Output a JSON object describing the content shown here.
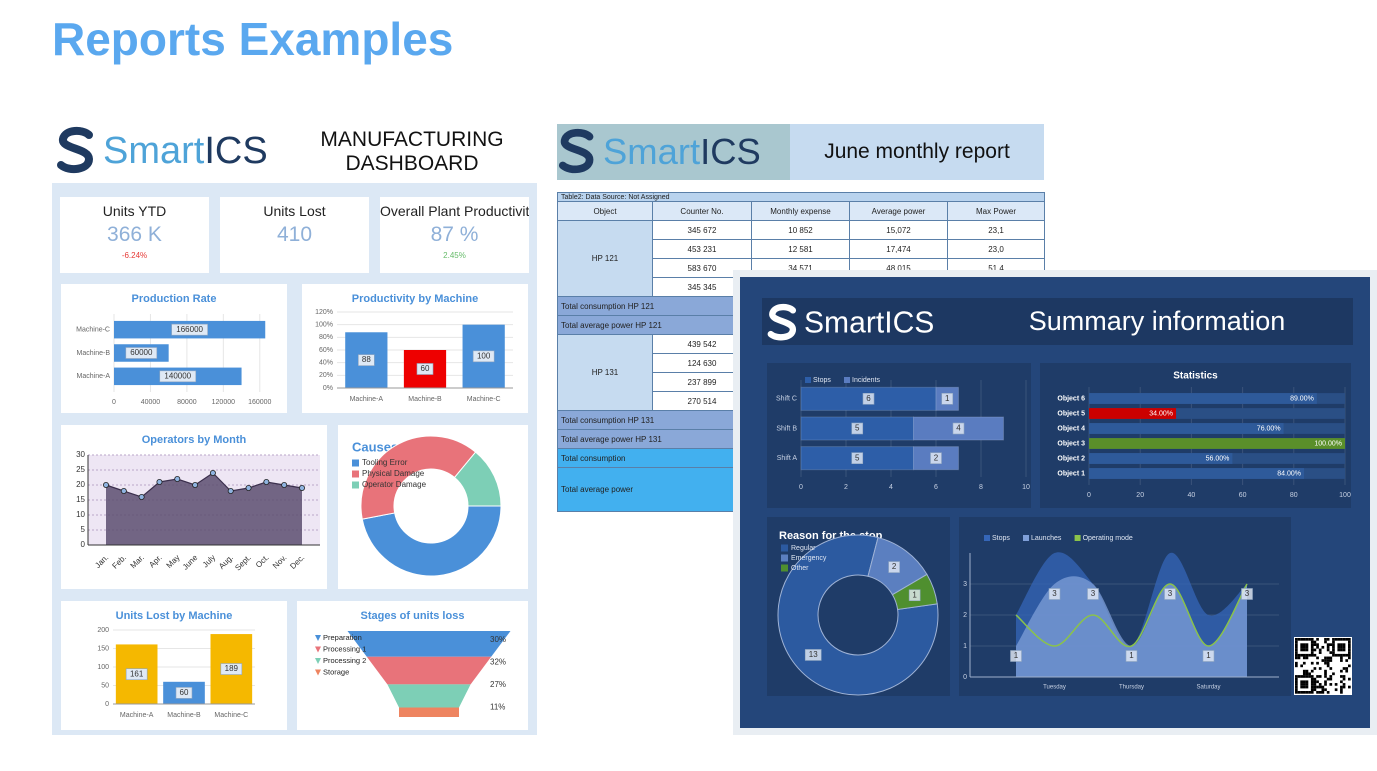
{
  "title": "Reports Examples",
  "dashboard": {
    "logo": {
      "left": "Smart",
      "right": "ICS"
    },
    "heading": [
      "MANUFACTURING",
      "DASHBOARD"
    ],
    "kpis": [
      {
        "label": "Units YTD",
        "value": "366 K",
        "delta": "-6.24%",
        "delta_color": "#e53935"
      },
      {
        "label": "Units Lost",
        "value": "410"
      },
      {
        "label": "Overall Plant Productivity",
        "value": "87 %",
        "delta": "2.45%",
        "delta_color": "#66bb6a"
      }
    ]
  },
  "report": {
    "logo": {
      "left": "Smart",
      "right": "ICS"
    },
    "heading": "June monthly report",
    "table": {
      "caption": "Table2: Data Source: Not Assigned",
      "columns": [
        "Object",
        "Counter No.",
        "Monthly expense",
        "Average power",
        "Max Power"
      ],
      "body": [
        {
          "object": "HP 121",
          "rows": [
            [
              "345 672",
              "10 852",
              "15,072",
              "23,1"
            ],
            [
              "453 231",
              "12 581",
              "17,474",
              "23,0"
            ],
            [
              "583 670",
              "34 571",
              "48,015",
              "51,4"
            ],
            [
              "345 345"
            ]
          ]
        },
        {
          "total": "Total consumption HP 121"
        },
        {
          "total": "Total average power HP 121"
        },
        {
          "object": "HP 131",
          "rows": [
            [
              "439 542"
            ],
            [
              "124 630"
            ],
            [
              "237 899"
            ],
            [
              "270 514"
            ]
          ]
        },
        {
          "total": "Total consumption HP 131"
        },
        {
          "total": "Total average power HP 131"
        },
        {
          "total": "Total consumption",
          "style": "grand"
        },
        {
          "total": "Total average power",
          "style": "grand"
        }
      ]
    }
  },
  "summary": {
    "logo": {
      "left": "Smart",
      "right": "ICS"
    },
    "heading": "Summary information"
  },
  "chart_data": [
    {
      "type": "bar",
      "orientation": "horizontal",
      "title": "Production Rate",
      "categories": [
        "Machine-C",
        "Machine-B",
        "Machine-A"
      ],
      "values": [
        166000,
        60000,
        140000
      ],
      "color": "#4a90d9",
      "xlim": [
        0,
        180000
      ],
      "xticks": [
        0,
        40000,
        80000,
        120000,
        160000
      ],
      "grid": true
    },
    {
      "type": "bar",
      "title": "Productivity by Machine",
      "categories": [
        "Machine-A",
        "Machine-B",
        "Machine-C"
      ],
      "values": [
        88,
        60,
        100
      ],
      "colors": [
        "#4a90d9",
        "#ee0000",
        "#4a90d9"
      ],
      "ylim": [
        0,
        120
      ],
      "yticks": [
        {
          "value": 0,
          "label": "0%"
        },
        {
          "value": 20,
          "label": "20%"
        },
        {
          "value": 40,
          "label": "40%"
        },
        {
          "value": 60,
          "label": "60%"
        },
        {
          "value": 80,
          "label": "80%"
        },
        {
          "value": 100,
          "label": "100%"
        },
        {
          "value": 120,
          "label": "120%"
        }
      ],
      "grid": true
    },
    {
      "type": "area",
      "title": "Operators by Month",
      "categories": [
        "Jan.",
        "Feb.",
        "Mar.",
        "Apr.",
        "May",
        "June",
        "July",
        "Aug.",
        "Sept.",
        "Oct.",
        "Nov.",
        "Dec."
      ],
      "values": [
        20,
        18,
        16,
        21,
        22,
        20,
        24,
        18,
        19,
        21,
        20,
        19
      ],
      "color": "#5c4d70",
      "ylim": [
        0,
        30
      ],
      "yticks": [
        0,
        5,
        10,
        15,
        20,
        25,
        30
      ],
      "grid": true
    },
    {
      "type": "pie",
      "donut": true,
      "title": "Causes",
      "categories": [
        "Tooling Error",
        "Physical Damage",
        "Operator Damage"
      ],
      "values": [
        47,
        39,
        14
      ],
      "colors": [
        "#4a90d9",
        "#e8737a",
        "#7dcfb6"
      ]
    },
    {
      "type": "bar",
      "title": "Units Lost by Machine",
      "categories": [
        "Machine-A",
        "Machine-B",
        "Machine-C"
      ],
      "values": [
        161,
        60,
        189
      ],
      "colors": [
        "#f5b800",
        "#4a90d9",
        "#f5b800"
      ],
      "ylim": [
        0,
        200
      ],
      "yticks": [
        0,
        50,
        100,
        150,
        200
      ],
      "grid": true
    },
    {
      "type": "funnel",
      "title": "Stages of units loss",
      "categories": [
        "Preparation",
        "Processing 1",
        "Processing 2",
        "Storage"
      ],
      "values": [
        30,
        32,
        27,
        11
      ],
      "value_labels": [
        "30%",
        "32%",
        "27%",
        "11%"
      ],
      "colors": [
        "#4a90d9",
        "#e8737a",
        "#7dcfb6",
        "#ee8460"
      ]
    },
    {
      "type": "bar",
      "orientation": "horizontal",
      "stacked": true,
      "categories": [
        "Shift C",
        "Shift B",
        "Shift A"
      ],
      "series": [
        {
          "name": "Stops",
          "color": "#2d5ea8",
          "values": [
            6,
            5,
            5
          ]
        },
        {
          "name": "Incidents",
          "color": "#5a7cc0",
          "values": [
            1,
            4,
            2
          ]
        }
      ],
      "xlim": [
        0,
        10
      ],
      "xticks": [
        0,
        2,
        4,
        6,
        8,
        10
      ],
      "grid": true
    },
    {
      "type": "bar",
      "orientation": "horizontal",
      "title": "Statistics",
      "categories": [
        "Object 6",
        "Object 5",
        "Object 4",
        "Object 3",
        "Object 2",
        "Object 1"
      ],
      "values": [
        89,
        34,
        76,
        100,
        56,
        84
      ],
      "value_labels": [
        "89.00%",
        "34.00%",
        "76.00%",
        "100.00%",
        "56.00%",
        "84.00%"
      ],
      "colors": [
        "#2e5a9a",
        "#cc0000",
        "#2e5a9a",
        "#5a8f2a",
        "#2e5a9a",
        "#2e5a9a"
      ],
      "xlim": [
        0,
        100
      ],
      "xticks": [
        0,
        20,
        40,
        60,
        80,
        100
      ],
      "grid": true
    },
    {
      "type": "pie",
      "donut": true,
      "title": "Reason for the stop",
      "categories": [
        "Regular",
        "Emergency",
        "Other"
      ],
      "values": [
        13,
        2,
        1
      ],
      "colors": [
        "#2c5aa0",
        "#5b7fc0",
        "#4f8f2f"
      ]
    },
    {
      "type": "area",
      "categories": [
        null,
        "Tuesday",
        null,
        "Thursday",
        null,
        "Saturday",
        null
      ],
      "series": [
        {
          "name": "Stops",
          "color": "#3566b8",
          "values": [
            2,
            4,
            3,
            1,
            4,
            2,
            3
          ]
        },
        {
          "name": "Launches",
          "color": "#7f9fd8",
          "values": [
            1,
            3,
            3,
            1,
            3,
            1,
            3
          ]
        },
        {
          "name": "Operating mode",
          "color": "#8bc34a",
          "kind": "line",
          "values": [
            2,
            1,
            2,
            1,
            3,
            1,
            3
          ]
        }
      ],
      "ylim": [
        0,
        4
      ],
      "yticks": [
        0,
        1,
        2,
        3
      ],
      "grid": true
    }
  ]
}
